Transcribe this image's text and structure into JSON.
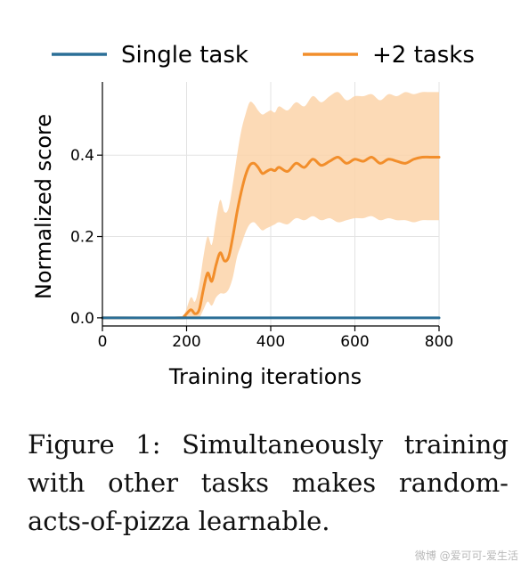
{
  "chart_data": {
    "type": "line",
    "xlabel": "Training iterations",
    "ylabel": "Normalized score",
    "xlim": [
      0,
      800
    ],
    "ylim": [
      -0.02,
      0.58
    ],
    "xticks": [
      "0",
      "200",
      "400",
      "600",
      "800"
    ],
    "yticks": [
      "0.0",
      "0.2",
      "0.4"
    ],
    "grid": true,
    "legend_position": "top",
    "series": [
      {
        "name": "Single task",
        "color": "#2b6f97",
        "x": [
          0,
          800
        ],
        "y": [
          0.0,
          0.0
        ]
      },
      {
        "name": "+2 tasks",
        "color": "#f28e2b",
        "band_color": "#fcd3a9",
        "x": [
          0,
          180,
          195,
          210,
          220,
          230,
          240,
          250,
          260,
          270,
          280,
          290,
          300,
          310,
          320,
          330,
          340,
          350,
          360,
          370,
          380,
          390,
          400,
          410,
          420,
          440,
          460,
          480,
          500,
          520,
          540,
          560,
          580,
          600,
          620,
          640,
          660,
          680,
          700,
          720,
          740,
          760,
          780,
          800
        ],
        "y": [
          0.0,
          0.0,
          0.005,
          0.02,
          0.01,
          0.02,
          0.07,
          0.11,
          0.09,
          0.13,
          0.16,
          0.14,
          0.15,
          0.2,
          0.26,
          0.31,
          0.35,
          0.375,
          0.38,
          0.37,
          0.355,
          0.36,
          0.365,
          0.362,
          0.37,
          0.36,
          0.38,
          0.37,
          0.39,
          0.375,
          0.385,
          0.395,
          0.38,
          0.39,
          0.385,
          0.395,
          0.38,
          0.39,
          0.385,
          0.38,
          0.39,
          0.395,
          0.395,
          0.395
        ],
        "lower": [
          0.0,
          0.0,
          0.0,
          0.0,
          0.0,
          0.0,
          0.02,
          0.04,
          0.03,
          0.05,
          0.06,
          0.06,
          0.07,
          0.1,
          0.15,
          0.18,
          0.21,
          0.23,
          0.235,
          0.225,
          0.215,
          0.22,
          0.225,
          0.23,
          0.235,
          0.23,
          0.245,
          0.24,
          0.25,
          0.24,
          0.245,
          0.235,
          0.24,
          0.245,
          0.245,
          0.25,
          0.24,
          0.245,
          0.24,
          0.24,
          0.235,
          0.24,
          0.24,
          0.24
        ],
        "upper": [
          0.0,
          0.0,
          0.01,
          0.05,
          0.04,
          0.08,
          0.15,
          0.2,
          0.18,
          0.24,
          0.29,
          0.26,
          0.27,
          0.33,
          0.4,
          0.46,
          0.5,
          0.53,
          0.525,
          0.51,
          0.5,
          0.505,
          0.51,
          0.505,
          0.52,
          0.51,
          0.53,
          0.52,
          0.545,
          0.53,
          0.545,
          0.555,
          0.535,
          0.545,
          0.545,
          0.55,
          0.535,
          0.55,
          0.545,
          0.555,
          0.55,
          0.555,
          0.555,
          0.555
        ]
      }
    ]
  },
  "caption": "Figure 1: Simultaneously training with other tasks makes random-acts-of-pizza learnable.",
  "watermark": "微博 @爱可可-爱生活"
}
